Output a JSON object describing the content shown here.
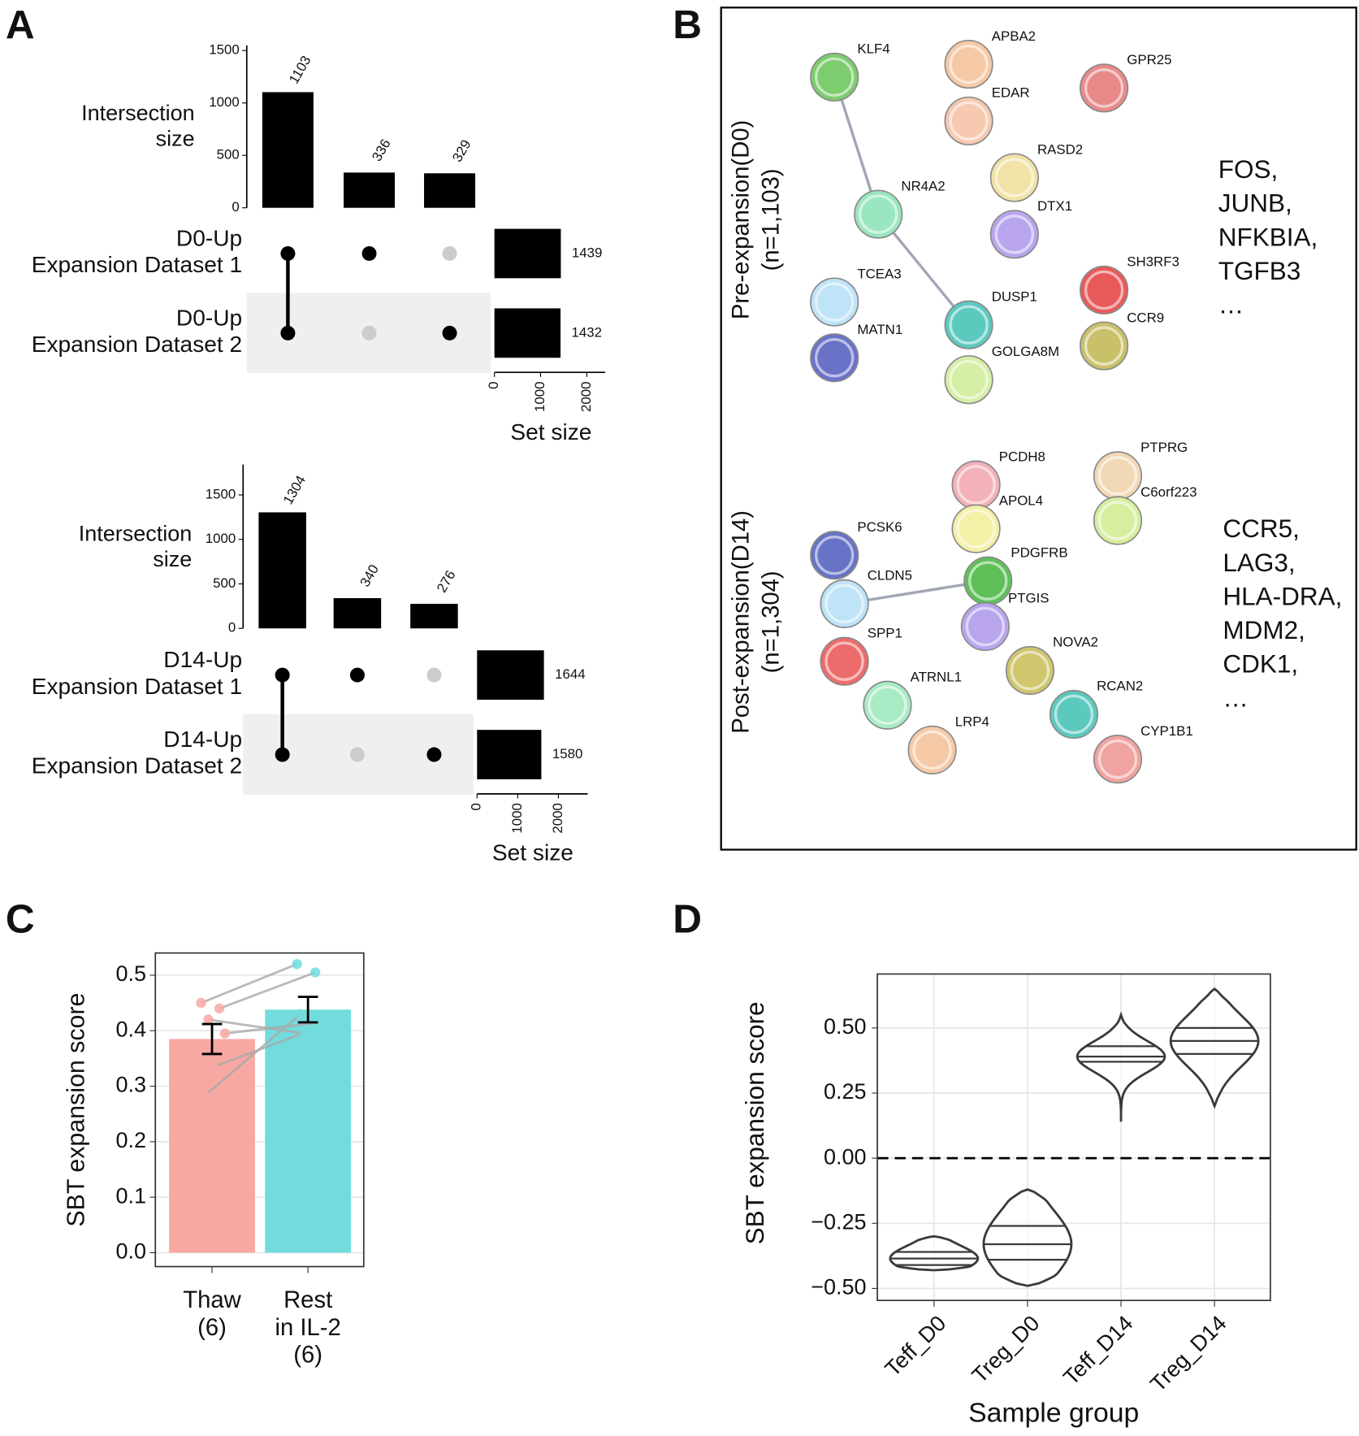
{
  "panel_labels": [
    "A",
    "B",
    "C",
    "D"
  ],
  "chart_data": [
    {
      "type": "upset",
      "y_label": [
        "Intersection",
        "size"
      ],
      "values": [
        1103,
        336,
        329
      ],
      "ylim": [
        0,
        1550
      ],
      "yticks": [
        0,
        500,
        1000,
        1500
      ],
      "set_names": [
        [
          "D0-Up",
          "Expansion Dataset 1"
        ],
        [
          "D0-Up",
          "Expansion Dataset 2"
        ]
      ],
      "set_sizes": [
        1439,
        1432
      ],
      "membership": [
        [
          true,
          true
        ],
        [
          true,
          false
        ],
        [
          false,
          true
        ]
      ],
      "xlim": [
        0,
        2400
      ],
      "xticks": [
        0,
        1000,
        2000
      ],
      "x_label": "Set size",
      "color": "#000000"
    },
    {
      "type": "upset",
      "y_label": [
        "Intersection",
        "size"
      ],
      "values": [
        1304,
        340,
        276
      ],
      "ylim": [
        0,
        1840
      ],
      "yticks": [
        0,
        500,
        1000,
        1500
      ],
      "set_names": [
        [
          "D14-Up",
          "Expansion Dataset 1"
        ],
        [
          "D14-Up",
          "Expansion Dataset 2"
        ]
      ],
      "set_sizes": [
        1644,
        1580
      ],
      "membership": [
        [
          true,
          true
        ],
        [
          true,
          false
        ],
        [
          false,
          true
        ]
      ],
      "xlim": [
        0,
        2720
      ],
      "xticks": [
        0,
        1000,
        2000
      ],
      "x_label": "Set size",
      "color": "#000000"
    },
    {
      "type": "bar",
      "y_label": "SBT expansion score",
      "categories": [
        [
          "Thaw",
          "(6)"
        ],
        [
          "Rest",
          "in IL-2",
          "(6)"
        ]
      ],
      "values": [
        0.385,
        0.438
      ],
      "errors": [
        0.027,
        0.023
      ],
      "points": [
        [
          0.45,
          0.44,
          0.42,
          0.395,
          0.335,
          0.283
        ],
        [
          0.52,
          0.505,
          0.395,
          0.415,
          0.4,
          0.43
        ]
      ],
      "colors": [
        "#f8a8a2",
        "#72dcdd"
      ],
      "ylim": [
        -0.025,
        0.54
      ],
      "yticks": [
        {
          "value": 0,
          "label": "0.0"
        },
        0.1,
        0.2,
        0.3,
        0.4,
        0.5
      ],
      "grid": true,
      "paired": true
    },
    {
      "type": "violin",
      "y_label": "SBT expansion score",
      "x_label": "Sample group",
      "categories": [
        "Teff_D0",
        "Treg_D0",
        "Teff_D14",
        "Treg_D14"
      ],
      "stats": [
        {
          "min": -0.43,
          "q1": -0.41,
          "median": -0.385,
          "q3": -0.36,
          "max": -0.3
        },
        {
          "min": -0.49,
          "q1": -0.39,
          "median": -0.33,
          "q3": -0.26,
          "max": -0.12
        },
        {
          "min": 0.14,
          "q1": 0.37,
          "median": 0.39,
          "q3": 0.43,
          "max": 0.55
        },
        {
          "min": 0.2,
          "q1": 0.4,
          "median": 0.45,
          "q3": 0.5,
          "max": 0.65
        }
      ],
      "ylim": [
        -0.546,
        0.707
      ],
      "yticks": [
        {
          "value": -0.5,
          "label": "−0.50"
        },
        {
          "value": -0.25,
          "label": "−0.25"
        },
        {
          "value": 0,
          "label": "0.00"
        },
        {
          "value": 0.25,
          "label": "0.25"
        },
        {
          "value": 0.5,
          "label": "0.50"
        }
      ],
      "hline": 0,
      "grid": true,
      "color": "#3a3a3a"
    }
  ],
  "network": {
    "groups": [
      {
        "label": [
          "Pre-expansion(D0)",
          "(n=1,103)"
        ],
        "nodes": [
          {
            "label": "KLF4",
            "color": "#7dcc6e"
          },
          {
            "label": "APBA2",
            "color": "#f6c9a6"
          },
          {
            "label": "EDAR",
            "color": "#f6c9b0"
          },
          {
            "label": "GPR25",
            "color": "#e88a8a"
          },
          {
            "label": "RASD2",
            "color": "#f1e3a8"
          },
          {
            "label": "NR4A2",
            "color": "#9ae6c0"
          },
          {
            "label": "DTX1",
            "color": "#b9a5ee"
          },
          {
            "label": "SH3RF3",
            "color": "#e85a5a"
          },
          {
            "label": "TCEA3",
            "color": "#bfe3f7"
          },
          {
            "label": "DUSP1",
            "color": "#5cc9bf"
          },
          {
            "label": "CCR9",
            "color": "#c9c06a"
          },
          {
            "label": "MATN1",
            "color": "#6a72c8"
          },
          {
            "label": "GOLGA8M",
            "color": "#d6efa6"
          }
        ],
        "edges": [
          [
            "KLF4",
            "NR4A2"
          ],
          [
            "NR4A2",
            "DUSP1"
          ]
        ],
        "genes": [
          "FOS,",
          "JUNB,",
          "NFKBIA,",
          "TGFB3",
          "…"
        ]
      },
      {
        "label": [
          "Post-expansion(D14)",
          "(n=1,304)"
        ],
        "nodes": [
          {
            "label": "PCDH8",
            "color": "#f3b1b8"
          },
          {
            "label": "PTPRG",
            "color": "#f1d9b5"
          },
          {
            "label": "APOL4",
            "color": "#f3f0a8"
          },
          {
            "label": "C6orf223",
            "color": "#d7ee9f"
          },
          {
            "label": "PCSK6",
            "color": "#6673c6"
          },
          {
            "label": "PDGFRB",
            "color": "#5fc05a"
          },
          {
            "label": "CLDN5",
            "color": "#bfe3f7"
          },
          {
            "label": "PTGIS",
            "color": "#b9a5ee"
          },
          {
            "label": "SPP1",
            "color": "#ee6b6b"
          },
          {
            "label": "NOVA2",
            "color": "#cfc66e"
          },
          {
            "label": "ATRNL1",
            "color": "#a9ebc5"
          },
          {
            "label": "RCAN2",
            "color": "#5cc9bf"
          },
          {
            "label": "LRP4",
            "color": "#f6c9a6"
          },
          {
            "label": "CYP1B1",
            "color": "#f0a3a0"
          }
        ],
        "edges": [
          [
            "CLDN5",
            "PDGFRB"
          ]
        ],
        "genes": [
          "CCR5,",
          "LAG3,",
          "HLA-DRA,",
          "MDM2,",
          "CDK1,",
          "…"
        ]
      }
    ]
  }
}
